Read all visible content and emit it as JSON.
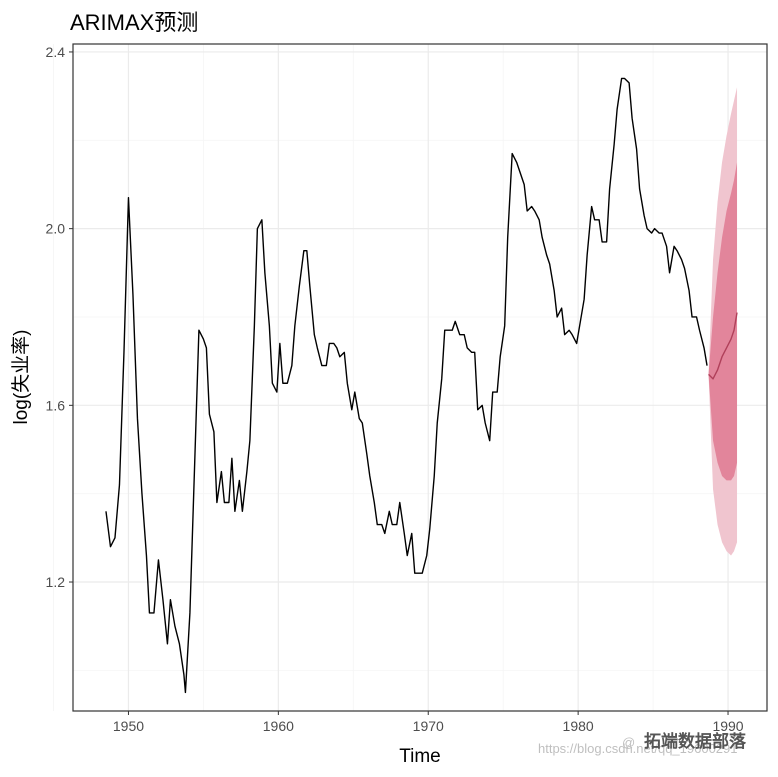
{
  "chart_data": {
    "type": "line",
    "title": "ARIMAX预测",
    "xlabel": "Time",
    "ylabel": "log(失业率)",
    "xlim": [
      1946.3,
      1992.6
    ],
    "ylim": [
      0.908,
      2.418
    ],
    "x_ticks": [
      1950,
      1960,
      1970,
      1980,
      1990
    ],
    "y_ticks": [
      1.2,
      1.6,
      2.0,
      2.4
    ],
    "x_tick_labels": [
      "1950",
      "1960",
      "1970",
      "1980",
      "1990"
    ],
    "y_tick_labels": [
      "1.2",
      "1.6",
      "2.0",
      "2.4"
    ],
    "grid": true,
    "colors": {
      "observed": "#000000",
      "forecast_line": "#b0405a",
      "band80": "#e2859b",
      "band95": "#f0c5cf",
      "grid_major": "#ebebeb",
      "grid_minor": "#f5f5f5",
      "panel_border": "#333333"
    },
    "series": [
      {
        "role": "observed",
        "points": [
          [
            1948.5,
            1.36
          ],
          [
            1948.8,
            1.28
          ],
          [
            1949.1,
            1.3
          ],
          [
            1949.4,
            1.42
          ],
          [
            1949.7,
            1.72
          ],
          [
            1950.0,
            2.07
          ],
          [
            1950.3,
            1.85
          ],
          [
            1950.6,
            1.57
          ],
          [
            1950.9,
            1.4
          ],
          [
            1951.2,
            1.26
          ],
          [
            1951.4,
            1.13
          ],
          [
            1951.7,
            1.13
          ],
          [
            1952.0,
            1.25
          ],
          [
            1952.3,
            1.16
          ],
          [
            1952.6,
            1.06
          ],
          [
            1952.8,
            1.16
          ],
          [
            1953.1,
            1.1
          ],
          [
            1953.4,
            1.06
          ],
          [
            1953.7,
            0.99
          ],
          [
            1953.8,
            0.95
          ],
          [
            1954.1,
            1.13
          ],
          [
            1954.4,
            1.45
          ],
          [
            1954.7,
            1.77
          ],
          [
            1955.0,
            1.75
          ],
          [
            1955.2,
            1.73
          ],
          [
            1955.4,
            1.58
          ],
          [
            1955.7,
            1.54
          ],
          [
            1955.9,
            1.38
          ],
          [
            1956.2,
            1.45
          ],
          [
            1956.4,
            1.38
          ],
          [
            1956.7,
            1.38
          ],
          [
            1956.9,
            1.48
          ],
          [
            1957.1,
            1.36
          ],
          [
            1957.4,
            1.43
          ],
          [
            1957.6,
            1.36
          ],
          [
            1957.9,
            1.45
          ],
          [
            1958.1,
            1.52
          ],
          [
            1958.4,
            1.78
          ],
          [
            1958.6,
            2.0
          ],
          [
            1958.9,
            2.02
          ],
          [
            1959.1,
            1.9
          ],
          [
            1959.4,
            1.78
          ],
          [
            1959.6,
            1.65
          ],
          [
            1959.9,
            1.63
          ],
          [
            1960.1,
            1.74
          ],
          [
            1960.3,
            1.65
          ],
          [
            1960.6,
            1.65
          ],
          [
            1960.9,
            1.69
          ],
          [
            1961.1,
            1.78
          ],
          [
            1961.4,
            1.87
          ],
          [
            1961.7,
            1.95
          ],
          [
            1961.9,
            1.95
          ],
          [
            1962.1,
            1.87
          ],
          [
            1962.4,
            1.76
          ],
          [
            1962.6,
            1.73
          ],
          [
            1962.9,
            1.69
          ],
          [
            1963.2,
            1.69
          ],
          [
            1963.4,
            1.74
          ],
          [
            1963.7,
            1.74
          ],
          [
            1963.9,
            1.73
          ],
          [
            1964.1,
            1.71
          ],
          [
            1964.4,
            1.72
          ],
          [
            1964.6,
            1.65
          ],
          [
            1964.9,
            1.59
          ],
          [
            1965.1,
            1.63
          ],
          [
            1965.4,
            1.57
          ],
          [
            1965.6,
            1.56
          ],
          [
            1965.9,
            1.49
          ],
          [
            1966.1,
            1.44
          ],
          [
            1966.4,
            1.38
          ],
          [
            1966.6,
            1.33
          ],
          [
            1966.9,
            1.33
          ],
          [
            1967.1,
            1.31
          ],
          [
            1967.4,
            1.36
          ],
          [
            1967.6,
            1.33
          ],
          [
            1967.9,
            1.33
          ],
          [
            1968.1,
            1.38
          ],
          [
            1968.4,
            1.31
          ],
          [
            1968.6,
            1.26
          ],
          [
            1968.9,
            1.31
          ],
          [
            1969.1,
            1.22
          ],
          [
            1969.4,
            1.22
          ],
          [
            1969.6,
            1.22
          ],
          [
            1969.9,
            1.26
          ],
          [
            1970.1,
            1.32
          ],
          [
            1970.4,
            1.44
          ],
          [
            1970.6,
            1.56
          ],
          [
            1970.9,
            1.66
          ],
          [
            1971.1,
            1.77
          ],
          [
            1971.4,
            1.77
          ],
          [
            1971.6,
            1.77
          ],
          [
            1971.8,
            1.79
          ],
          [
            1972.1,
            1.76
          ],
          [
            1972.4,
            1.76
          ],
          [
            1972.6,
            1.73
          ],
          [
            1972.9,
            1.72
          ],
          [
            1973.1,
            1.72
          ],
          [
            1973.3,
            1.59
          ],
          [
            1973.6,
            1.6
          ],
          [
            1973.8,
            1.56
          ],
          [
            1974.1,
            1.52
          ],
          [
            1974.3,
            1.63
          ],
          [
            1974.6,
            1.63
          ],
          [
            1974.8,
            1.71
          ],
          [
            1975.1,
            1.78
          ],
          [
            1975.3,
            1.98
          ],
          [
            1975.6,
            2.17
          ],
          [
            1975.9,
            2.15
          ],
          [
            1976.1,
            2.13
          ],
          [
            1976.4,
            2.1
          ],
          [
            1976.6,
            2.04
          ],
          [
            1976.9,
            2.05
          ],
          [
            1977.1,
            2.04
          ],
          [
            1977.4,
            2.02
          ],
          [
            1977.6,
            1.98
          ],
          [
            1977.9,
            1.94
          ],
          [
            1978.1,
            1.92
          ],
          [
            1978.4,
            1.86
          ],
          [
            1978.6,
            1.8
          ],
          [
            1978.9,
            1.82
          ],
          [
            1979.1,
            1.76
          ],
          [
            1979.4,
            1.77
          ],
          [
            1979.6,
            1.76
          ],
          [
            1979.9,
            1.74
          ],
          [
            1980.1,
            1.78
          ],
          [
            1980.4,
            1.84
          ],
          [
            1980.6,
            1.94
          ],
          [
            1980.9,
            2.05
          ],
          [
            1981.1,
            2.02
          ],
          [
            1981.4,
            2.02
          ],
          [
            1981.6,
            1.97
          ],
          [
            1981.9,
            1.97
          ],
          [
            1982.1,
            2.09
          ],
          [
            1982.4,
            2.19
          ],
          [
            1982.6,
            2.27
          ],
          [
            1982.9,
            2.34
          ],
          [
            1983.1,
            2.34
          ],
          [
            1983.4,
            2.33
          ],
          [
            1983.6,
            2.25
          ],
          [
            1983.9,
            2.18
          ],
          [
            1984.1,
            2.09
          ],
          [
            1984.4,
            2.03
          ],
          [
            1984.6,
            2.0
          ],
          [
            1984.9,
            1.99
          ],
          [
            1985.1,
            2.0
          ],
          [
            1985.4,
            1.99
          ],
          [
            1985.6,
            1.99
          ],
          [
            1985.9,
            1.96
          ],
          [
            1986.1,
            1.9
          ],
          [
            1986.4,
            1.96
          ],
          [
            1986.6,
            1.95
          ],
          [
            1986.9,
            1.93
          ],
          [
            1987.1,
            1.91
          ],
          [
            1987.4,
            1.86
          ],
          [
            1987.6,
            1.8
          ],
          [
            1987.9,
            1.8
          ],
          [
            1988.1,
            1.77
          ],
          [
            1988.4,
            1.73
          ],
          [
            1988.6,
            1.69
          ]
        ]
      },
      {
        "role": "forecast",
        "points": [
          [
            1988.7,
            1.67
          ],
          [
            1989.0,
            1.66
          ],
          [
            1989.3,
            1.68
          ],
          [
            1989.6,
            1.71
          ],
          [
            1989.9,
            1.73
          ],
          [
            1990.2,
            1.75
          ],
          [
            1990.4,
            1.77
          ],
          [
            1990.6,
            1.81
          ]
        ],
        "lo80": [
          1.67,
          1.52,
          1.47,
          1.44,
          1.43,
          1.43,
          1.44,
          1.47
        ],
        "hi80": [
          1.67,
          1.8,
          1.9,
          1.98,
          2.04,
          2.08,
          2.11,
          2.15
        ],
        "lo95": [
          1.67,
          1.41,
          1.33,
          1.29,
          1.27,
          1.26,
          1.27,
          1.29
        ],
        "hi95": [
          1.67,
          1.93,
          2.06,
          2.15,
          2.21,
          2.26,
          2.29,
          2.32
        ]
      }
    ]
  },
  "watermark": {
    "url": "https://blog.csdn.net/qq_19600291",
    "brand": "拓端数据部落",
    "brand_prefix": "@"
  }
}
